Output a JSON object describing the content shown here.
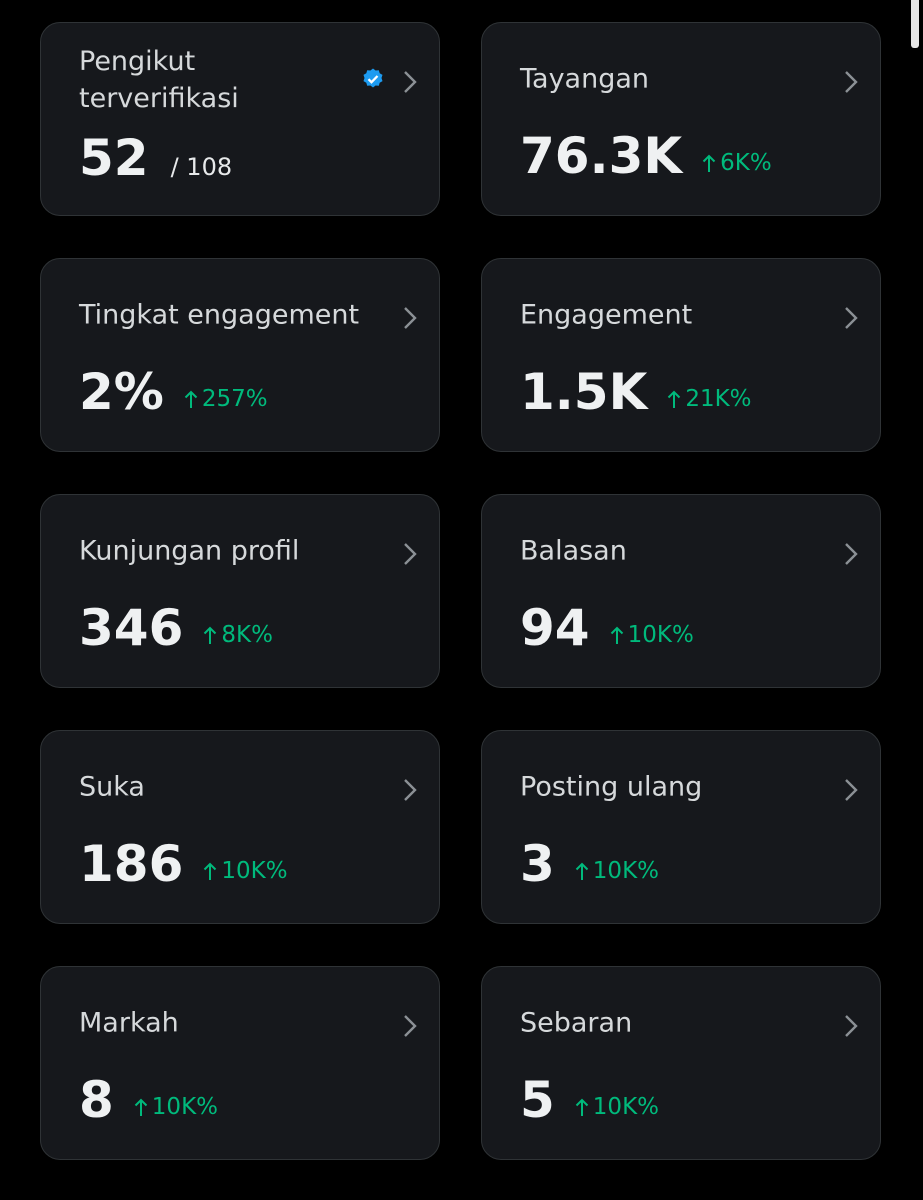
{
  "cards": [
    {
      "title": "Pengikut terverifikasi",
      "value": "52",
      "total": "/ 108"
    },
    {
      "title": "Tayangan",
      "value": "76.3K",
      "change": "6K%"
    },
    {
      "title": "Tingkat engagement",
      "value": "2%",
      "change": "257%"
    },
    {
      "title": "Engagement",
      "value": "1.5K",
      "change": "21K%"
    },
    {
      "title": "Kunjungan profil",
      "value": "346",
      "change": "8K%"
    },
    {
      "title": "Balasan",
      "value": "94",
      "change": "10K%"
    },
    {
      "title": "Suka",
      "value": "186",
      "change": "10K%"
    },
    {
      "title": "Posting ulang",
      "value": "3",
      "change": "10K%"
    },
    {
      "title": "Markah",
      "value": "8",
      "change": "10K%"
    },
    {
      "title": "Sebaran",
      "value": "5",
      "change": "10K%"
    }
  ]
}
